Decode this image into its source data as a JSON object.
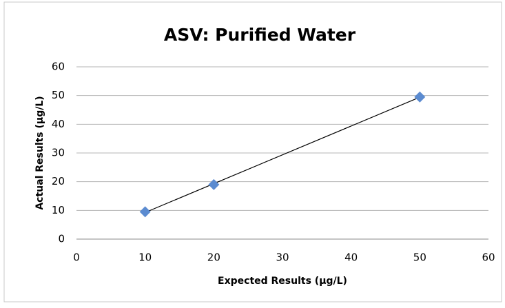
{
  "chart_data": {
    "type": "scatter",
    "title": "ASV: Purified Water",
    "x_label": "Expected Results (µg/L)",
    "y_label": "Actual Results (µg/L)",
    "series": [
      {
        "color": "#5b8bd0",
        "x": [
          10,
          20,
          50
        ],
        "values": [
          9.5,
          19,
          49.5
        ]
      }
    ],
    "xlim": [
      0,
      60
    ],
    "xticks": [
      0,
      10,
      20,
      30,
      40,
      50,
      60
    ],
    "ylim": [
      0,
      60
    ],
    "yticks": [
      0,
      10,
      20,
      30,
      40,
      50,
      60
    ],
    "grid": true,
    "trendline": true
  }
}
